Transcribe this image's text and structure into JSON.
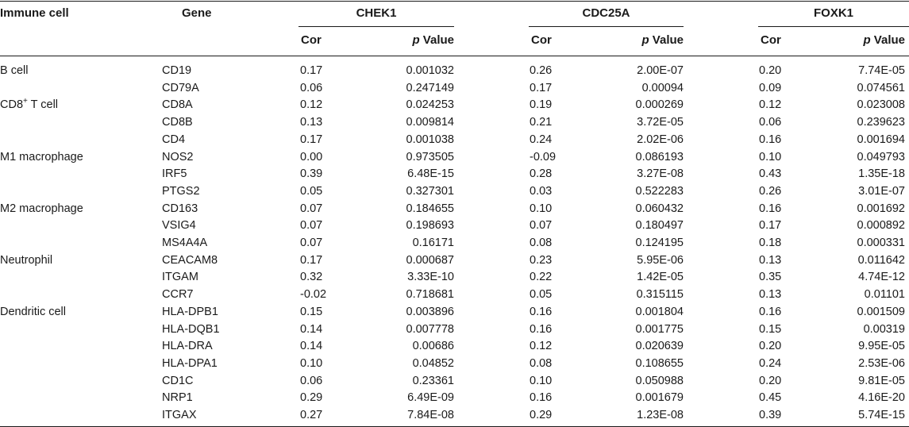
{
  "table": {
    "headers": {
      "immune_cell": "Immune cell",
      "gene": "Gene",
      "groups": [
        "CHEK1",
        "CDC25A",
        "FOXK1"
      ],
      "cor": "Cor",
      "p_italic": "p",
      "p_rest": " Value"
    },
    "rows": [
      {
        "cell": "B cell",
        "gene": "CD19",
        "v": [
          "0.17",
          "0.001032",
          "0.26",
          "2.00E-07",
          "0.20",
          "7.74E-05"
        ]
      },
      {
        "cell": "",
        "gene": "CD79A",
        "v": [
          "0.06",
          "0.247149",
          "0.17",
          "0.00094",
          "0.09",
          "0.074561"
        ]
      },
      {
        "cell": "CD8",
        "cell_sup": "+",
        "cell_tail": " T cell",
        "gene": "CD8A",
        "v": [
          "0.12",
          "0.024253",
          "0.19",
          "0.000269",
          "0.12",
          "0.023008"
        ]
      },
      {
        "cell": "",
        "gene": "CD8B",
        "v": [
          "0.13",
          "0.009814",
          "0.21",
          "3.72E-05",
          "0.06",
          "0.239623"
        ]
      },
      {
        "cell": "",
        "gene": "CD4",
        "v": [
          "0.17",
          "0.001038",
          "0.24",
          "2.02E-06",
          "0.16",
          "0.001694"
        ]
      },
      {
        "cell": "M1 macrophage",
        "gene": "NOS2",
        "v": [
          "0.00",
          "0.973505",
          "-0.09",
          "0.086193",
          "0.10",
          "0.049793"
        ]
      },
      {
        "cell": "",
        "gene": "IRF5",
        "v": [
          "0.39",
          "6.48E-15",
          "0.28",
          "3.27E-08",
          "0.43",
          "1.35E-18"
        ]
      },
      {
        "cell": "",
        "gene": "PTGS2",
        "v": [
          "0.05",
          "0.327301",
          "0.03",
          "0.522283",
          "0.26",
          "3.01E-07"
        ]
      },
      {
        "cell": "M2 macrophage",
        "gene": "CD163",
        "v": [
          "0.07",
          "0.184655",
          "0.10",
          "0.060432",
          "0.16",
          "0.001692"
        ]
      },
      {
        "cell": "",
        "gene": "VSIG4",
        "v": [
          "0.07",
          "0.198693",
          "0.07",
          "0.180497",
          "0.17",
          "0.000892"
        ]
      },
      {
        "cell": "",
        "gene": "MS4A4A",
        "v": [
          "0.07",
          "0.16171",
          "0.08",
          "0.124195",
          "0.18",
          "0.000331"
        ]
      },
      {
        "cell": "Neutrophil",
        "gene": "CEACAM8",
        "v": [
          "0.17",
          "0.000687",
          "0.23",
          "5.95E-06",
          "0.13",
          "0.011642"
        ]
      },
      {
        "cell": "",
        "gene": "ITGAM",
        "v": [
          "0.32",
          "3.33E-10",
          "0.22",
          "1.42E-05",
          "0.35",
          "4.74E-12"
        ]
      },
      {
        "cell": "",
        "gene": "CCR7",
        "v": [
          "-0.02",
          "0.718681",
          "0.05",
          "0.315115",
          "0.13",
          "0.01101"
        ]
      },
      {
        "cell": "Dendritic cell",
        "gene": "HLA-DPB1",
        "v": [
          "0.15",
          "0.003896",
          "0.16",
          "0.001804",
          "0.16",
          "0.001509"
        ]
      },
      {
        "cell": "",
        "gene": "HLA-DQB1",
        "v": [
          "0.14",
          "0.007778",
          "0.16",
          "0.001775",
          "0.15",
          "0.00319"
        ]
      },
      {
        "cell": "",
        "gene": "HLA-DRA",
        "v": [
          "0.14",
          "0.00686",
          "0.12",
          "0.020639",
          "0.20",
          "9.95E-05"
        ]
      },
      {
        "cell": "",
        "gene": "HLA-DPA1",
        "v": [
          "0.10",
          "0.04852",
          "0.08",
          "0.108655",
          "0.24",
          "2.53E-06"
        ]
      },
      {
        "cell": "",
        "gene": "CD1C",
        "v": [
          "0.06",
          "0.23361",
          "0.10",
          "0.050988",
          "0.20",
          "9.81E-05"
        ]
      },
      {
        "cell": "",
        "gene": "NRP1",
        "v": [
          "0.29",
          "6.49E-09",
          "0.16",
          "0.001679",
          "0.45",
          "4.16E-20"
        ]
      },
      {
        "cell": "",
        "gene": "ITGAX",
        "v": [
          "0.27",
          "7.84E-08",
          "0.29",
          "1.23E-08",
          "0.39",
          "5.74E-15"
        ]
      }
    ]
  }
}
